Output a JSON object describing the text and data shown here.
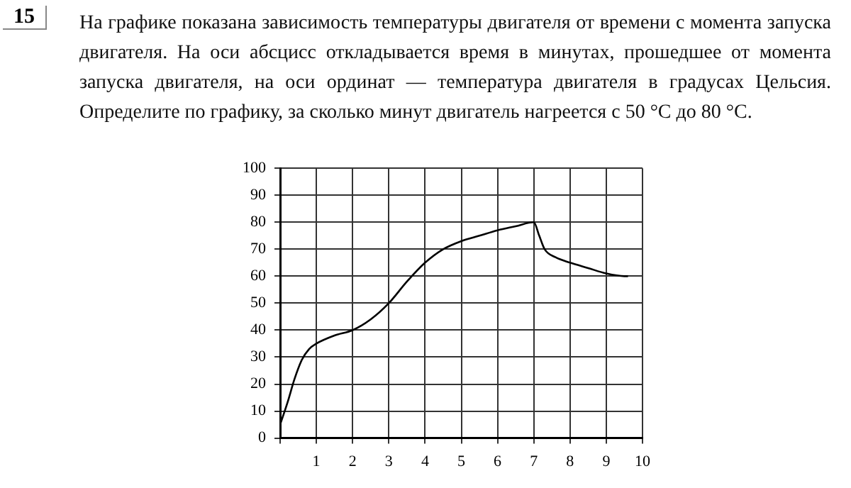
{
  "chart_data": {
    "type": "line",
    "title": "На графике показана зависимость температуры двигателя от времени с момента запуска двигателя. На оси абсцисс откладывается время в минутах, прошедшее от момента запуска двигателя, на оси ординат — температура двигателя в градусах Цельсия. Определите по графику, за сколько минут двигатель нагреется с 50 °C до 80 °C.",
    "annotations": [
      "15"
    ],
    "x": [
      0,
      0.2,
      0.4,
      0.6,
      0.8,
      1,
      1.5,
      2,
      2.5,
      3,
      3.5,
      4,
      4.5,
      5,
      5.5,
      6,
      6.5,
      7,
      7.15,
      7.3,
      7.6,
      8,
      8.5,
      9,
      9.5,
      9.6
    ],
    "series": [
      {
        "color": "#000000",
        "values": [
          5,
          13,
          22,
          29,
          33,
          35,
          38,
          40,
          44,
          50,
          58,
          65,
          70,
          73,
          75,
          77,
          78.5,
          80,
          75,
          70,
          67,
          65,
          63,
          61,
          60,
          60
        ]
      }
    ],
    "xlim": [
      0,
      10
    ],
    "xticks": [
      {
        "value": 0,
        "label": null
      },
      1,
      2,
      3,
      4,
      5,
      6,
      7,
      8,
      9,
      10
    ],
    "ylim": [
      0,
      100
    ],
    "yticks": [
      0,
      10,
      20,
      30,
      40,
      50,
      60,
      70,
      80,
      90,
      100
    ],
    "grid": true,
    "legend": false,
    "marker": "none",
    "line_style": "solid"
  }
}
